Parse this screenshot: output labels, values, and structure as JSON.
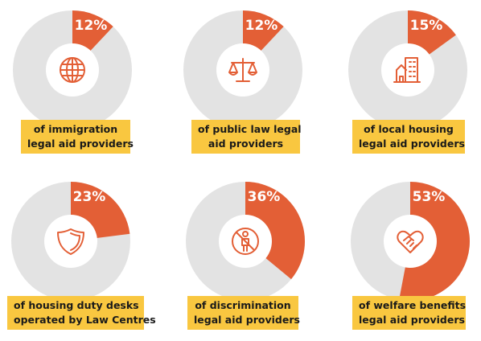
{
  "chart_data": [
    {
      "type": "pie",
      "value": 12,
      "value_label": "12%",
      "label_lines": [
        "of immigration",
        "legal aid providers"
      ],
      "icon": "globe-icon"
    },
    {
      "type": "pie",
      "value": 12,
      "value_label": "12%",
      "label_lines": [
        "of public law legal",
        "aid providers"
      ],
      "icon": "scales-icon"
    },
    {
      "type": "pie",
      "value": 15,
      "value_label": "15%",
      "label_lines": [
        "of local housing",
        "legal aid providers"
      ],
      "icon": "building-icon"
    },
    {
      "type": "pie",
      "value": 23,
      "value_label": "23%",
      "label_lines": [
        "of housing duty desks",
        "operated by Law Centres"
      ],
      "icon": "shield-icon"
    },
    {
      "type": "pie",
      "value": 36,
      "value_label": "36%",
      "label_lines": [
        "of discrimination",
        "legal aid providers"
      ],
      "icon": "no-person-icon"
    },
    {
      "type": "pie",
      "value": 53,
      "value_label": "53%",
      "label_lines": [
        "of welfare benefits",
        "legal aid providers"
      ],
      "icon": "heart-handshake-icon"
    }
  ],
  "colors": {
    "accent": "#e35f36",
    "track": "#e3e3e3",
    "label_bg": "#f9c740"
  }
}
